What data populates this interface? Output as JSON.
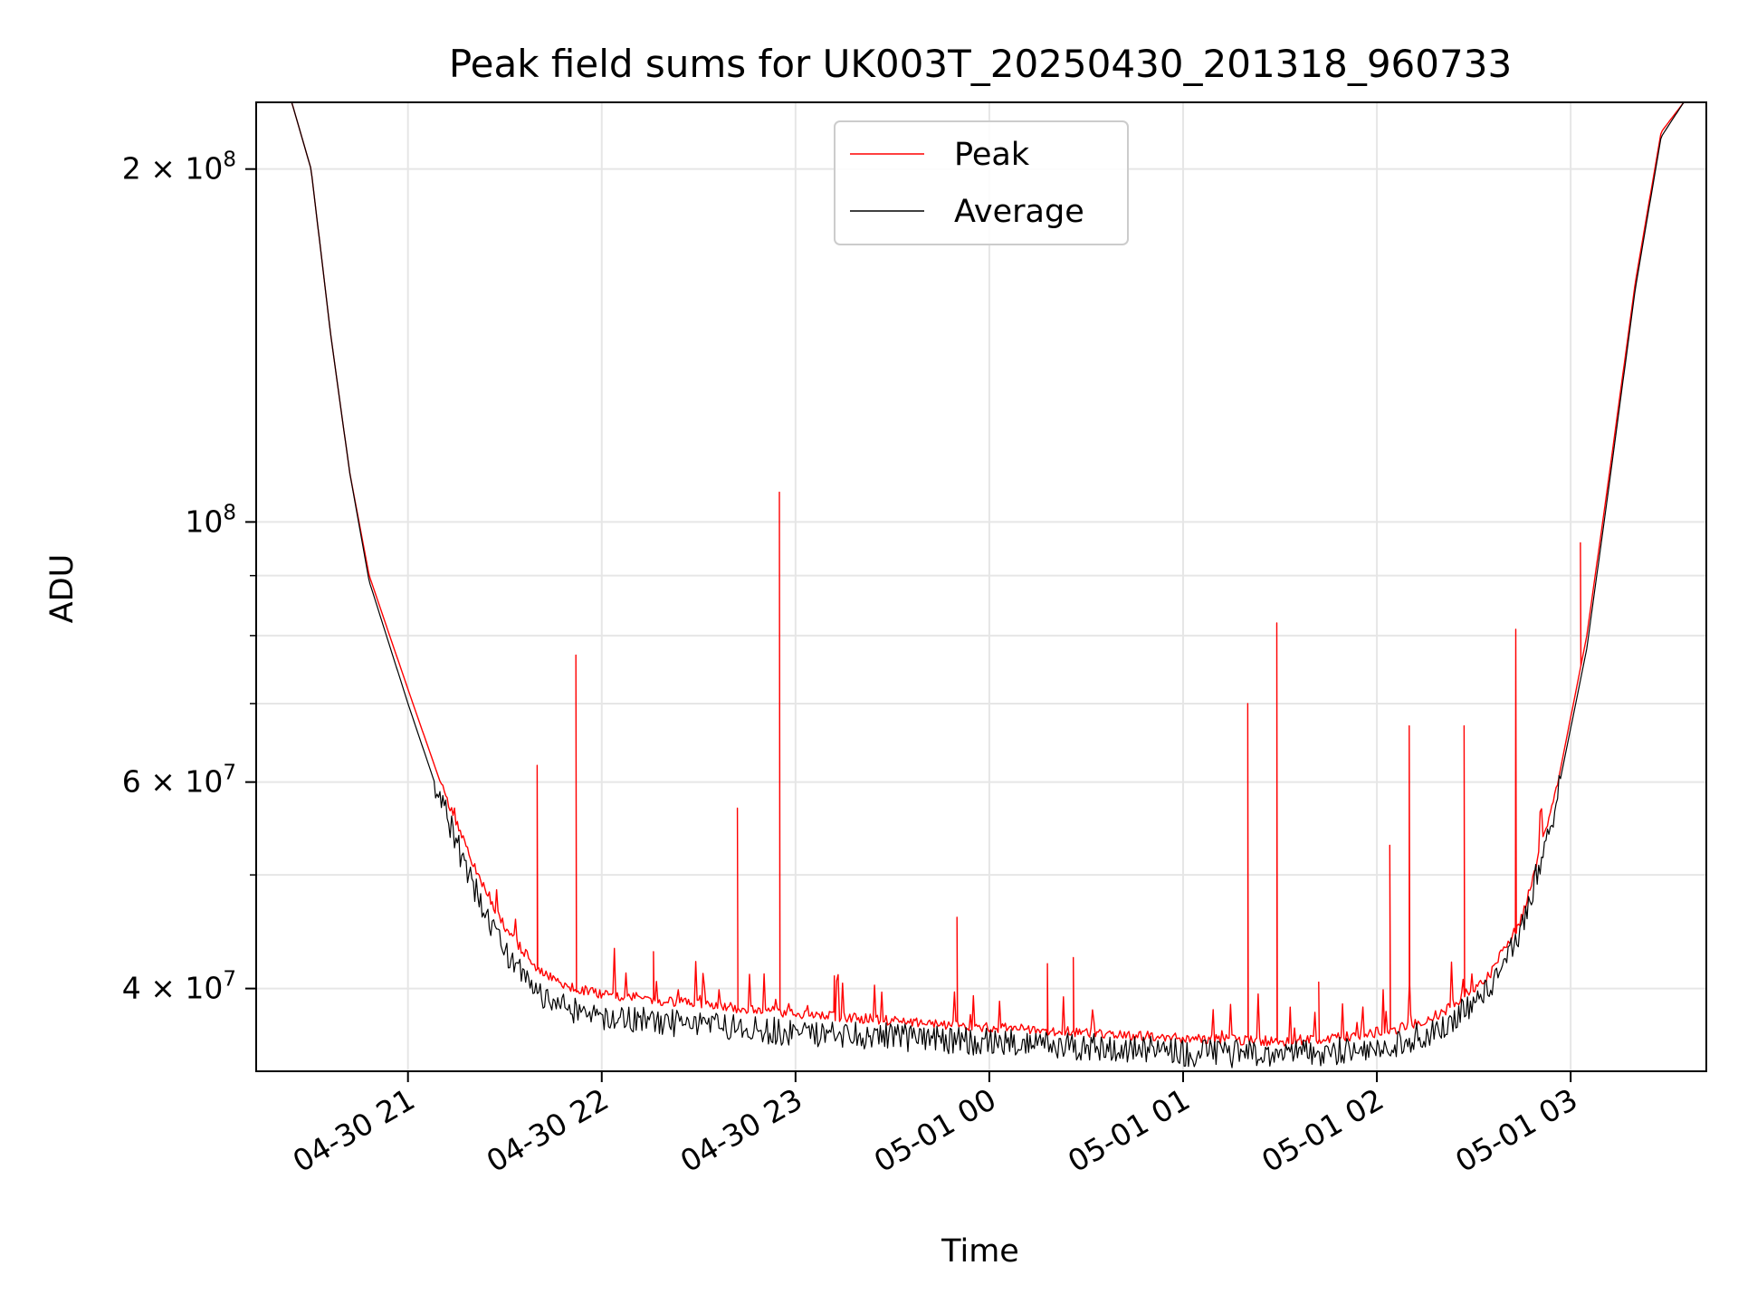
{
  "chart_data": {
    "type": "line",
    "title": "Peak field sums for UK003T_20250430_201318_960733",
    "xlabel": "Time",
    "ylabel": "ADU",
    "y_scale": "log",
    "grid": true,
    "legend_position": "upper center",
    "xlim": [
      "2025-04-30 20:13",
      "2025-05-01 03:42"
    ],
    "ylim": [
      34000000,
      228000000
    ],
    "x_ticks": [
      {
        "value": "2025-04-30 21:00",
        "label": "04-30 21"
      },
      {
        "value": "2025-04-30 22:00",
        "label": "04-30 22"
      },
      {
        "value": "2025-04-30 23:00",
        "label": "04-30 23"
      },
      {
        "value": "2025-05-01 00:00",
        "label": "05-01 00"
      },
      {
        "value": "2025-05-01 01:00",
        "label": "05-01 01"
      },
      {
        "value": "2025-05-01 02:00",
        "label": "05-01 02"
      },
      {
        "value": "2025-05-01 03:00",
        "label": "05-01 03"
      }
    ],
    "y_major_ticks": [
      {
        "value": 40000000,
        "label": "4 × 10⁷",
        "mant": "4",
        "exp": "7"
      },
      {
        "value": 60000000,
        "label": "6 × 10⁷",
        "mant": "6",
        "exp": "7"
      },
      {
        "value": 100000000,
        "label": "10⁸",
        "mant": "",
        "exp": "8"
      },
      {
        "value": 200000000,
        "label": "2 × 10⁸",
        "mant": "2",
        "exp": "8"
      }
    ],
    "y_minor_ticks": [
      50000000,
      70000000,
      80000000,
      90000000
    ],
    "series": [
      {
        "name": "Peak",
        "color": "#ff0000",
        "description": "Peak sum per frame (smooth twilight curve plus noise and spikes)",
        "points": [
          [
            "2025-04-30 20:15",
            228000000
          ],
          [
            "2025-04-30 20:24",
            228000000
          ],
          [
            "2025-04-30 20:30",
            200000000
          ],
          [
            "2025-04-30 20:36",
            145000000
          ],
          [
            "2025-04-30 20:42",
            110000000
          ],
          [
            "2025-04-30 20:48",
            90000000
          ],
          [
            "2025-04-30 21:00",
            72000000
          ],
          [
            "2025-04-30 21:10",
            60000000
          ],
          [
            "2025-04-30 21:20",
            51000000
          ],
          [
            "2025-04-30 21:30",
            45000000
          ],
          [
            "2025-04-30 21:40",
            41500000
          ],
          [
            "2025-04-30 21:50",
            40000000
          ],
          [
            "2025-04-30 22:00",
            39500000
          ],
          [
            "2025-04-30 22:30",
            38700000
          ],
          [
            "2025-04-30 23:00",
            38000000
          ],
          [
            "2025-04-30 23:30",
            37500000
          ],
          [
            "2025-05-01 00:00",
            37000000
          ],
          [
            "2025-05-01 00:30",
            36600000
          ],
          [
            "2025-05-01 01:00",
            36200000
          ],
          [
            "2025-05-01 01:30",
            36000000
          ],
          [
            "2025-05-01 01:50",
            36300000
          ],
          [
            "2025-05-01 02:05",
            36800000
          ],
          [
            "2025-05-01 02:20",
            38000000
          ],
          [
            "2025-05-01 02:35",
            41000000
          ],
          [
            "2025-05-01 02:45",
            46000000
          ],
          [
            "2025-05-01 02:55",
            58000000
          ],
          [
            "2025-05-01 03:05",
            80000000
          ],
          [
            "2025-05-01 03:12",
            110000000
          ],
          [
            "2025-05-01 03:20",
            160000000
          ],
          [
            "2025-05-01 03:28",
            215000000
          ],
          [
            "2025-05-01 03:35",
            228000000
          ],
          [
            "2025-05-01 03:40",
            228000000
          ]
        ],
        "spikes": [
          [
            "2025-04-30 21:40",
            62000000
          ],
          [
            "2025-04-30 21:52",
            77000000
          ],
          [
            "2025-04-30 22:16",
            43000000
          ],
          [
            "2025-04-30 22:42",
            57000000
          ],
          [
            "2025-04-30 22:55",
            106000000
          ],
          [
            "2025-04-30 23:12",
            41000000
          ],
          [
            "2025-04-30 23:50",
            46000000
          ],
          [
            "2025-05-01 00:18",
            42000000
          ],
          [
            "2025-05-01 00:26",
            42500000
          ],
          [
            "2025-05-01 01:20",
            70000000
          ],
          [
            "2025-05-01 01:29",
            82000000
          ],
          [
            "2025-05-01 01:42",
            40500000
          ],
          [
            "2025-05-01 02:04",
            53000000
          ],
          [
            "2025-05-01 02:10",
            67000000
          ],
          [
            "2025-05-01 02:27",
            67000000
          ],
          [
            "2025-05-01 02:43",
            81000000
          ],
          [
            "2025-05-01 03:03",
            96000000
          ]
        ]
      },
      {
        "name": "Average",
        "color": "#000000",
        "description": "Average sum per frame (follows Peak curve, slightly lower, noisier floor)",
        "points": [
          [
            "2025-04-30 20:15",
            228000000
          ],
          [
            "2025-04-30 20:24",
            228000000
          ],
          [
            "2025-04-30 20:30",
            200000000
          ],
          [
            "2025-04-30 20:36",
            145000000
          ],
          [
            "2025-04-30 20:42",
            110000000
          ],
          [
            "2025-04-30 20:48",
            89000000
          ],
          [
            "2025-04-30 21:00",
            70000000
          ],
          [
            "2025-04-30 21:10",
            58000000
          ],
          [
            "2025-04-30 21:20",
            49000000
          ],
          [
            "2025-04-30 21:30",
            43000000
          ],
          [
            "2025-04-30 21:40",
            39800000
          ],
          [
            "2025-04-30 21:50",
            38500000
          ],
          [
            "2025-04-30 22:00",
            37800000
          ],
          [
            "2025-04-30 22:30",
            37200000
          ],
          [
            "2025-04-30 23:00",
            36700000
          ],
          [
            "2025-04-30 23:30",
            36400000
          ],
          [
            "2025-05-01 00:00",
            36000000
          ],
          [
            "2025-05-01 00:30",
            35700000
          ],
          [
            "2025-05-01 01:00",
            35300000
          ],
          [
            "2025-05-01 01:30",
            35100000
          ],
          [
            "2025-05-01 01:50",
            35400000
          ],
          [
            "2025-05-01 02:05",
            35900000
          ],
          [
            "2025-05-01 02:20",
            37000000
          ],
          [
            "2025-05-01 02:35",
            40000000
          ],
          [
            "2025-05-01 02:45",
            45000000
          ],
          [
            "2025-05-01 02:55",
            57000000
          ],
          [
            "2025-05-01 03:05",
            78000000
          ],
          [
            "2025-05-01 03:12",
            108000000
          ],
          [
            "2025-05-01 03:20",
            158000000
          ],
          [
            "2025-05-01 03:28",
            213000000
          ],
          [
            "2025-05-01 03:35",
            228000000
          ],
          [
            "2025-05-01 03:40",
            228000000
          ]
        ]
      }
    ]
  }
}
